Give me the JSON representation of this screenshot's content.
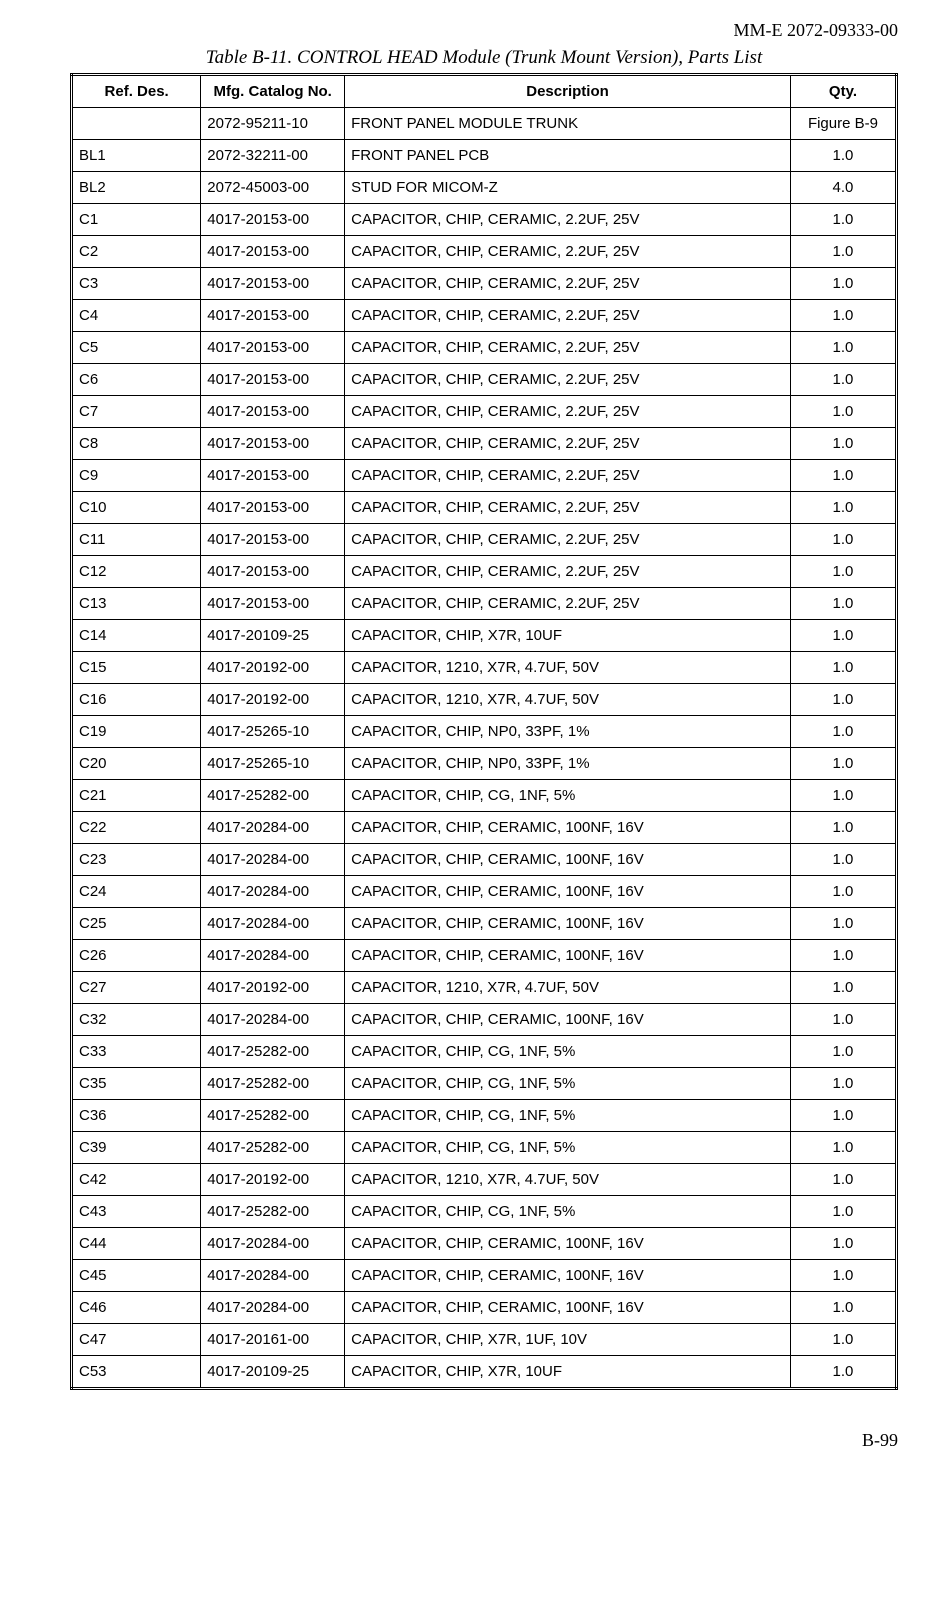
{
  "doc_id": "MM-E 2072-09333-00",
  "table_title": "Table B-11. CONTROL HEAD Module (Trunk Mount Version), Parts List",
  "page_number": "B-99",
  "columns": {
    "ref": "Ref. Des.",
    "mfg": "Mfg. Catalog No.",
    "desc": "Description",
    "qty": "Qty."
  },
  "rows": [
    {
      "ref": "",
      "mfg": "2072-95211-10",
      "desc": "FRONT PANEL MODULE TRUNK",
      "qty": "Figure B-9"
    },
    {
      "ref": "BL1",
      "mfg": "2072-32211-00",
      "desc": "FRONT PANEL PCB",
      "qty": "1.0"
    },
    {
      "ref": "BL2",
      "mfg": "2072-45003-00",
      "desc": "STUD FOR MICOM-Z",
      "qty": "4.0"
    },
    {
      "ref": "C1",
      "mfg": "4017-20153-00",
      "desc": "CAPACITOR, CHIP, CERAMIC, 2.2UF, 25V",
      "qty": "1.0"
    },
    {
      "ref": "C2",
      "mfg": "4017-20153-00",
      "desc": "CAPACITOR, CHIP, CERAMIC, 2.2UF, 25V",
      "qty": "1.0"
    },
    {
      "ref": "C3",
      "mfg": "4017-20153-00",
      "desc": "CAPACITOR, CHIP, CERAMIC, 2.2UF, 25V",
      "qty": "1.0"
    },
    {
      "ref": "C4",
      "mfg": "4017-20153-00",
      "desc": "CAPACITOR, CHIP, CERAMIC, 2.2UF, 25V",
      "qty": "1.0"
    },
    {
      "ref": "C5",
      "mfg": "4017-20153-00",
      "desc": "CAPACITOR, CHIP, CERAMIC, 2.2UF, 25V",
      "qty": "1.0"
    },
    {
      "ref": "C6",
      "mfg": "4017-20153-00",
      "desc": "CAPACITOR, CHIP, CERAMIC, 2.2UF, 25V",
      "qty": "1.0"
    },
    {
      "ref": "C7",
      "mfg": "4017-20153-00",
      "desc": "CAPACITOR, CHIP, CERAMIC, 2.2UF, 25V",
      "qty": "1.0"
    },
    {
      "ref": "C8",
      "mfg": "4017-20153-00",
      "desc": "CAPACITOR, CHIP, CERAMIC, 2.2UF, 25V",
      "qty": "1.0"
    },
    {
      "ref": "C9",
      "mfg": "4017-20153-00",
      "desc": "CAPACITOR, CHIP, CERAMIC, 2.2UF, 25V",
      "qty": "1.0"
    },
    {
      "ref": "C10",
      "mfg": "4017-20153-00",
      "desc": "CAPACITOR, CHIP, CERAMIC, 2.2UF, 25V",
      "qty": "1.0"
    },
    {
      "ref": "C11",
      "mfg": "4017-20153-00",
      "desc": "CAPACITOR, CHIP, CERAMIC, 2.2UF, 25V",
      "qty": "1.0"
    },
    {
      "ref": "C12",
      "mfg": "4017-20153-00",
      "desc": "CAPACITOR, CHIP, CERAMIC, 2.2UF, 25V",
      "qty": "1.0"
    },
    {
      "ref": "C13",
      "mfg": "4017-20153-00",
      "desc": "CAPACITOR, CHIP, CERAMIC, 2.2UF, 25V",
      "qty": "1.0"
    },
    {
      "ref": "C14",
      "mfg": "4017-20109-25",
      "desc": "CAPACITOR, CHIP, X7R, 10UF",
      "qty": "1.0"
    },
    {
      "ref": "C15",
      "mfg": "4017-20192-00",
      "desc": "CAPACITOR, 1210, X7R, 4.7UF, 50V",
      "qty": "1.0"
    },
    {
      "ref": "C16",
      "mfg": "4017-20192-00",
      "desc": "CAPACITOR, 1210, X7R, 4.7UF, 50V",
      "qty": "1.0"
    },
    {
      "ref": "C19",
      "mfg": "4017-25265-10",
      "desc": "CAPACITOR, CHIP, NP0, 33PF, 1%",
      "qty": "1.0"
    },
    {
      "ref": "C20",
      "mfg": "4017-25265-10",
      "desc": "CAPACITOR, CHIP, NP0, 33PF, 1%",
      "qty": "1.0"
    },
    {
      "ref": "C21",
      "mfg": "4017-25282-00",
      "desc": "CAPACITOR, CHIP, CG, 1NF, 5%",
      "qty": "1.0"
    },
    {
      "ref": "C22",
      "mfg": "4017-20284-00",
      "desc": "CAPACITOR, CHIP, CERAMIC, 100NF, 16V",
      "qty": "1.0"
    },
    {
      "ref": "C23",
      "mfg": "4017-20284-00",
      "desc": "CAPACITOR, CHIP, CERAMIC, 100NF, 16V",
      "qty": "1.0"
    },
    {
      "ref": "C24",
      "mfg": "4017-20284-00",
      "desc": "CAPACITOR, CHIP, CERAMIC, 100NF, 16V",
      "qty": "1.0"
    },
    {
      "ref": "C25",
      "mfg": "4017-20284-00",
      "desc": "CAPACITOR, CHIP, CERAMIC, 100NF, 16V",
      "qty": "1.0"
    },
    {
      "ref": "C26",
      "mfg": "4017-20284-00",
      "desc": "CAPACITOR, CHIP, CERAMIC, 100NF, 16V",
      "qty": "1.0"
    },
    {
      "ref": "C27",
      "mfg": "4017-20192-00",
      "desc": "CAPACITOR, 1210, X7R, 4.7UF, 50V",
      "qty": "1.0"
    },
    {
      "ref": "C32",
      "mfg": "4017-20284-00",
      "desc": "CAPACITOR, CHIP, CERAMIC, 100NF, 16V",
      "qty": "1.0"
    },
    {
      "ref": "C33",
      "mfg": "4017-25282-00",
      "desc": "CAPACITOR, CHIP, CG, 1NF, 5%",
      "qty": "1.0"
    },
    {
      "ref": "C35",
      "mfg": "4017-25282-00",
      "desc": "CAPACITOR, CHIP, CG, 1NF, 5%",
      "qty": "1.0"
    },
    {
      "ref": "C36",
      "mfg": "4017-25282-00",
      "desc": "CAPACITOR, CHIP, CG, 1NF, 5%",
      "qty": "1.0"
    },
    {
      "ref": "C39",
      "mfg": "4017-25282-00",
      "desc": "CAPACITOR, CHIP, CG, 1NF, 5%",
      "qty": "1.0"
    },
    {
      "ref": "C42",
      "mfg": "4017-20192-00",
      "desc": "CAPACITOR, 1210, X7R, 4.7UF, 50V",
      "qty": "1.0"
    },
    {
      "ref": "C43",
      "mfg": "4017-25282-00",
      "desc": "CAPACITOR, CHIP, CG, 1NF, 5%",
      "qty": "1.0"
    },
    {
      "ref": "C44",
      "mfg": "4017-20284-00",
      "desc": "CAPACITOR, CHIP, CERAMIC, 100NF, 16V",
      "qty": "1.0"
    },
    {
      "ref": "C45",
      "mfg": "4017-20284-00",
      "desc": "CAPACITOR, CHIP, CERAMIC, 100NF, 16V",
      "qty": "1.0"
    },
    {
      "ref": "C46",
      "mfg": "4017-20284-00",
      "desc": "CAPACITOR, CHIP, CERAMIC, 100NF, 16V",
      "qty": "1.0"
    },
    {
      "ref": "C47",
      "mfg": "4017-20161-00",
      "desc": "CAPACITOR, CHIP, X7R, 1UF, 10V",
      "qty": "1.0"
    },
    {
      "ref": "C53",
      "mfg": "4017-20109-25",
      "desc": "CAPACITOR, CHIP, X7R, 10UF",
      "qty": "1.0"
    }
  ]
}
